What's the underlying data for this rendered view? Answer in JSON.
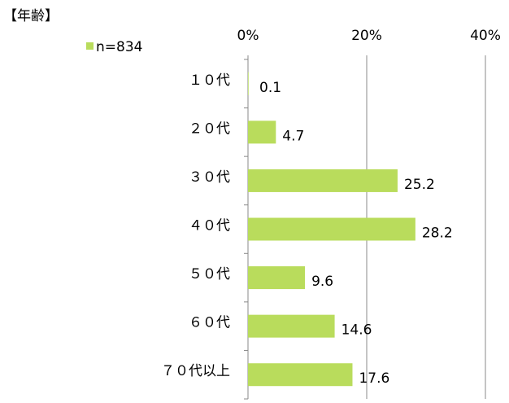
{
  "chart_data": {
    "type": "bar",
    "orientation": "horizontal",
    "title": "【年齢】",
    "categories": [
      "１０代",
      "２０代",
      "３０代",
      "４０代",
      "５０代",
      "６０代",
      "７０代以上"
    ],
    "series": [
      {
        "name": "n=834",
        "color": "#b9dc5c",
        "values": [
          0.1,
          4.7,
          25.2,
          28.2,
          9.6,
          14.6,
          17.6
        ]
      }
    ],
    "xlim": [
      0,
      40
    ],
    "xticks": [
      {
        "value": 0,
        "label": "0%"
      },
      {
        "value": 20,
        "label": "20%"
      },
      {
        "value": 40,
        "label": "40%"
      }
    ],
    "grid": true
  }
}
